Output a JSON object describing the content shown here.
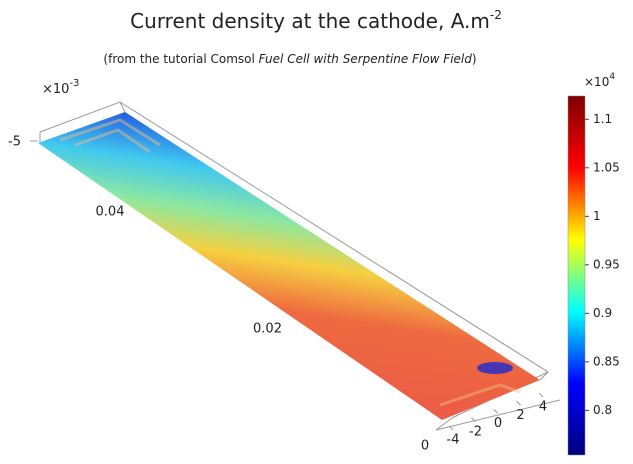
{
  "chart_data": {
    "type": "surface",
    "title": {
      "text": "Current density at the cathode, A.m",
      "superscript": "-2"
    },
    "subtitle": {
      "before": "(from the tutorial Comsol ",
      "italic": "Fuel Cell with Serpentine Flow Field",
      "after": ")"
    },
    "colorbar": {
      "multiplier": "×10",
      "exponent": "4",
      "clim": [
        0.754,
        1.124
      ],
      "ticks": [
        0.8,
        0.85,
        0.9,
        0.95,
        1,
        1.05,
        1.1
      ],
      "colormap": [
        "#00007f",
        "#0000ff",
        "#00ffff",
        "#ffff00",
        "#ff0000",
        "#7f0000"
      ]
    },
    "z_axis": {
      "multiplier": "×10",
      "exponent": "-3",
      "ticks": [
        -5
      ]
    },
    "y_axis": {
      "ticks": [
        0,
        0.02,
        0.04
      ]
    },
    "x_axis": {
      "ticks": [
        -4,
        -2,
        0,
        2,
        4
      ]
    }
  }
}
